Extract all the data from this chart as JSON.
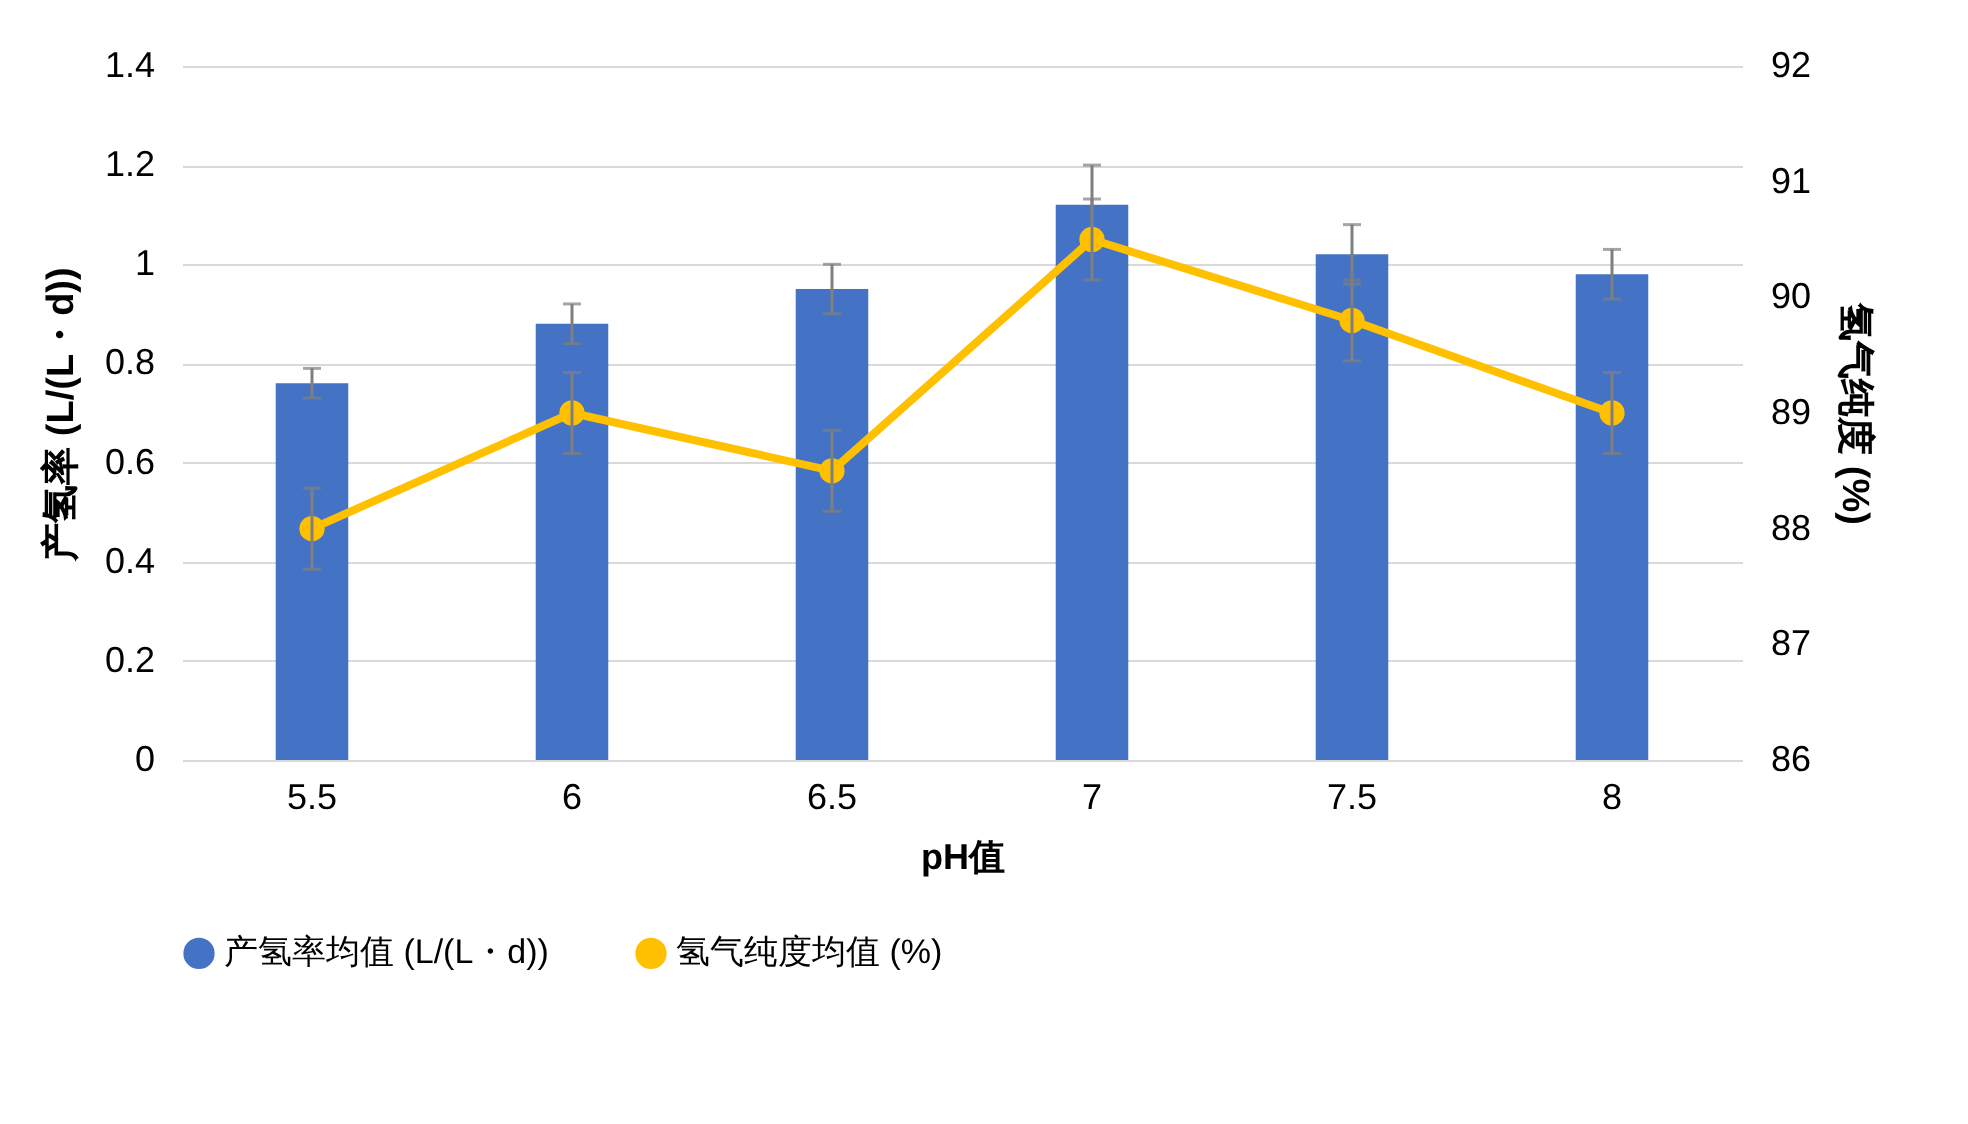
{
  "chart_data": {
    "type": "bar",
    "xlabel": "pH值",
    "ylabel": "产氢率 (L/(L・d))",
    "y2label": "氢气纯度 (%)",
    "categories": [
      "5.5",
      "6",
      "6.5",
      "7",
      "7.5",
      "8"
    ],
    "series": [
      {
        "name": "产氢率均值 (L/(L・d))",
        "color": "#4472c4",
        "values": [
          0.76,
          0.88,
          0.95,
          1.12,
          1.02,
          0.98
        ],
        "errors": [
          0.03,
          0.04,
          0.05,
          0.08,
          0.06,
          0.05
        ]
      },
      {
        "name": "氢气纯度均值 (%)",
        "type": "line",
        "axis": "y2",
        "color": "#ffc000",
        "values": [
          88.0,
          89.0,
          88.5,
          90.5,
          89.8,
          89.0
        ],
        "errors": [
          0.35,
          0.35,
          0.35,
          0.35,
          0.35,
          0.35
        ]
      }
    ],
    "ylim": [
      0,
      1.4
    ],
    "yticks": [
      0,
      0.2,
      0.4,
      0.6,
      0.8,
      1,
      1.2,
      1.4
    ],
    "y2lim": [
      86,
      92
    ],
    "y2ticks": [
      86,
      87,
      88,
      89,
      90,
      91,
      92
    ],
    "grid": "y",
    "legend": "bottom",
    "marker": "circle",
    "line_style": "solid"
  }
}
